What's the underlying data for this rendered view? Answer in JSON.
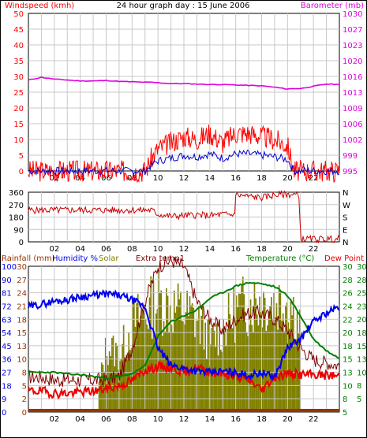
{
  "title": "24 hour graph day : 15 June 2006",
  "colors": {
    "windspeed": "#ff0000",
    "windavg": "#0000cc",
    "barometer": "#dd00dd",
    "direction": "#cc0000",
    "humidity": "#0000ee",
    "solar": "#808000",
    "extratemp": "#800000",
    "temperature": "#008000",
    "dewpoint": "#ee0000",
    "rainfall": "#993300",
    "grid": "#c8c8c8"
  },
  "x_ticks": [
    "02",
    "04",
    "06",
    "08",
    "10",
    "12",
    "14",
    "16",
    "18",
    "20",
    "22"
  ],
  "chart_data": [
    {
      "type": "line",
      "title": "24 hour graph day : 15 June 2006",
      "left_label": "Windspeed (kmh)",
      "right_label": "Barometer (mb)",
      "left_ticks": [
        "50",
        "45",
        "40",
        "35",
        "30",
        "25",
        "20",
        "15",
        "10",
        "5",
        "0"
      ],
      "right_ticks": [
        "1030",
        "1027",
        "1023",
        "1020",
        "1016",
        "1013",
        "1009",
        "1006",
        "1002",
        "999",
        "995"
      ],
      "ylim_left": [
        0,
        50
      ],
      "ylim_right": [
        995,
        1030
      ],
      "x": [
        0,
        1,
        2,
        3,
        4,
        5,
        6,
        7,
        8,
        9,
        9.5,
        10,
        11,
        12,
        13,
        14,
        15,
        16,
        17,
        18,
        19,
        20,
        20.5,
        21,
        22,
        23,
        24
      ],
      "series": [
        {
          "name": "Windspeed (kmh)",
          "axis": "left",
          "values": [
            0,
            0,
            0,
            0,
            0,
            0,
            0,
            0,
            0,
            0,
            4,
            7,
            9,
            11,
            10,
            12,
            9,
            12,
            12,
            11,
            10,
            8,
            0,
            0,
            0,
            0,
            0
          ]
        },
        {
          "name": "Barometer (mb)",
          "axis": "right",
          "values": [
            1015.2,
            1015.8,
            1015.4,
            1015.2,
            1015.0,
            1015.0,
            1015.1,
            1014.9,
            1014.8,
            1014.7,
            1014.7,
            1014.6,
            1014.4,
            1014.4,
            1014.3,
            1014.2,
            1014.2,
            1014.1,
            1014.0,
            1013.9,
            1013.6,
            1013.2,
            1013.3,
            1013.3,
            1013.8,
            1014.3,
            1014.2
          ]
        }
      ]
    },
    {
      "type": "line",
      "left_ticks": [
        "360",
        "270",
        "180",
        "90",
        "0"
      ],
      "right_ticks": [
        "N",
        "W",
        "S",
        "E",
        "N"
      ],
      "ylim": [
        0,
        360
      ],
      "x": [
        0,
        2,
        4,
        6,
        8,
        9.5,
        10,
        11,
        12,
        13,
        14,
        15,
        15.9,
        16,
        17,
        18,
        19,
        20,
        20.9,
        21,
        22,
        23,
        24
      ],
      "series": [
        {
          "name": "Wind direction",
          "values": [
            230,
            230,
            230,
            230,
            230,
            230,
            200,
            185,
            190,
            195,
            190,
            200,
            195,
            340,
            330,
            320,
            340,
            345,
            340,
            20,
            20,
            20,
            20
          ]
        }
      ]
    },
    {
      "type": "line",
      "left_label": "Rainfall (mm)",
      "labels": [
        "Humidity %",
        "Solar",
        "Extra temp1",
        "Temperature (°C)",
        "Dew Point"
      ],
      "humidity_ticks": [
        "100",
        "90",
        "81",
        "72",
        "63",
        "54",
        "45",
        "36",
        "27",
        "18",
        "9",
        "0"
      ],
      "rain_ticks": [
        "30",
        "27",
        "24",
        "21",
        "18",
        "15",
        "13",
        "10",
        "8",
        "5",
        "2",
        "0"
      ],
      "temp_ticks_a": [
        "30",
        "28",
        "26",
        "24",
        "22",
        "20",
        "18",
        "15",
        "13",
        "10",
        "8",
        "5"
      ],
      "temp_ticks_b": [
        "30",
        "28",
        "25",
        "23",
        "20",
        "18",
        "15",
        "13",
        "10",
        "8",
        "5"
      ],
      "ylim_humidity": [
        0,
        100
      ],
      "ylim_temp": [
        5,
        30
      ],
      "x": [
        0,
        1,
        2,
        3,
        4,
        5,
        6,
        7,
        8,
        9,
        10,
        11,
        12,
        13,
        14,
        15,
        16,
        17,
        18,
        19,
        20,
        21,
        22,
        23,
        24
      ],
      "series": [
        {
          "name": "Humidity %",
          "axis": "humidity",
          "values": [
            72,
            74,
            76,
            77,
            79,
            80,
            81,
            80,
            77,
            72,
            44,
            32,
            30,
            28,
            27,
            28,
            27,
            25,
            27,
            24,
            44,
            50,
            62,
            68,
            72
          ]
        },
        {
          "name": "Solar",
          "axis": "humidity",
          "values": [
            0,
            0,
            0,
            0,
            0,
            0,
            52,
            45,
            70,
            78,
            88,
            82,
            78,
            72,
            55,
            66,
            80,
            85,
            88,
            86,
            90,
            65,
            0,
            0,
            0
          ]
        },
        {
          "name": "Extra temp1",
          "axis": "temp",
          "values": [
            11,
            11,
            10.5,
            10.5,
            10.5,
            10.5,
            10.5,
            11,
            16,
            24,
            30,
            31,
            30,
            24,
            21,
            19,
            21,
            22,
            22,
            21,
            19,
            16,
            14,
            13.5,
            13
          ]
        },
        {
          "name": "Temperature (°C)",
          "axis": "temp",
          "values": [
            11.8,
            11.8,
            11.8,
            11.5,
            11.4,
            11.1,
            10.8,
            11.0,
            11.6,
            12.9,
            18,
            20.5,
            21.5,
            22.5,
            24.5,
            25.5,
            26.6,
            27.2,
            27.0,
            26.5,
            25.0,
            21.5,
            17.5,
            15.5,
            14.2
          ]
        },
        {
          "name": "Dew Point",
          "axis": "temp",
          "values": [
            8.6,
            8.6,
            8.2,
            8.2,
            8.4,
            8.6,
            8.9,
            9.5,
            10.4,
            12.2,
            12.8,
            12.6,
            11.9,
            12.6,
            11.9,
            11.5,
            11.2,
            10.5,
            8.8,
            11.0,
            11.6,
            11.4,
            11.4,
            11.3,
            11.2
          ]
        },
        {
          "name": "Rainfall (mm)",
          "axis": "humidity",
          "values": [
            0,
            0,
            0,
            0,
            0,
            0,
            0,
            0,
            0,
            0,
            0,
            0,
            0,
            0,
            0,
            0,
            0,
            0,
            0,
            0,
            0,
            0,
            0,
            0,
            0
          ]
        }
      ]
    }
  ]
}
